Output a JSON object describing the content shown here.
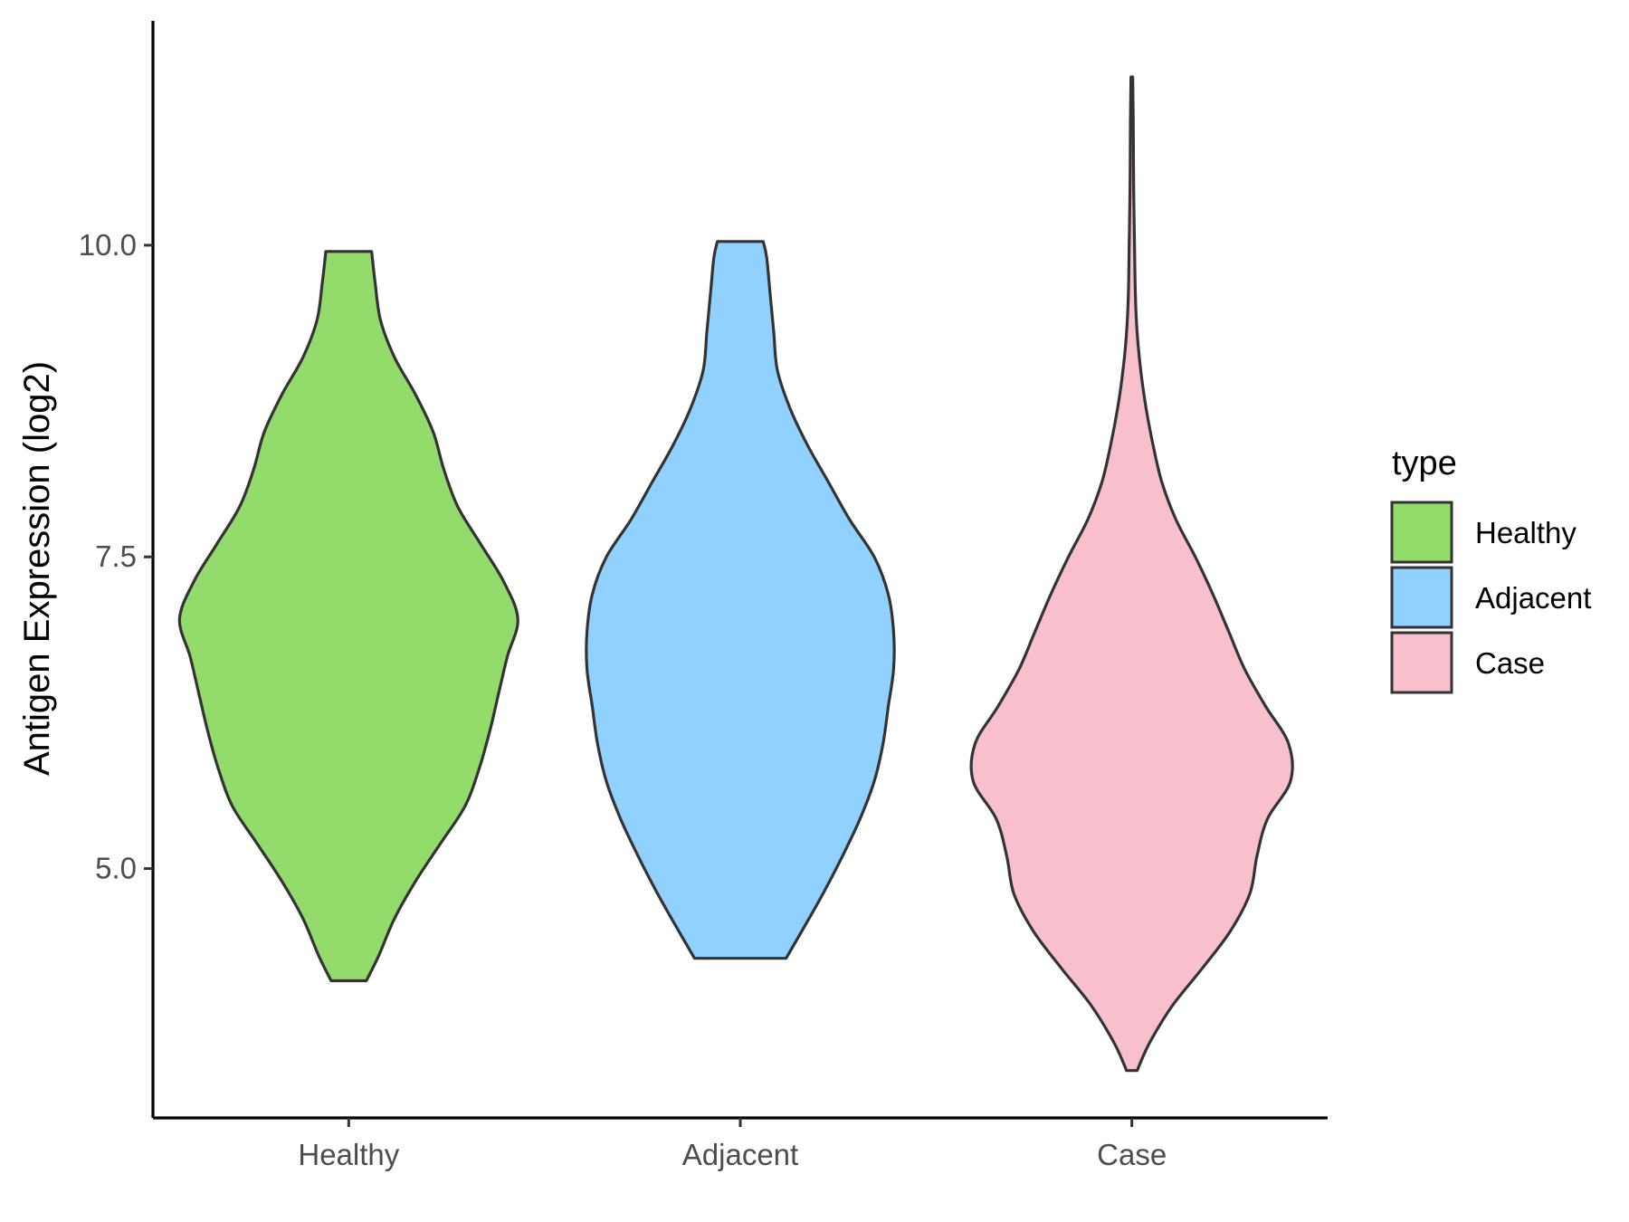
{
  "chart_data": {
    "type": "violin",
    "ylabel": "Antigen Expression (log2)",
    "xlabel": "",
    "categories": [
      "Healthy",
      "Adjacent",
      "Case"
    ],
    "yticks": [
      "5.0",
      "7.5",
      "10.0"
    ],
    "ytick_values": [
      5.0,
      7.5,
      10.0
    ],
    "ylim": [
      3.0,
      11.8
    ],
    "grid": false,
    "legend": {
      "title": "type",
      "position": "right",
      "entries": [
        "Healthy",
        "Adjacent",
        "Case"
      ]
    },
    "series": [
      {
        "name": "Healthy",
        "color": "#93DB6B",
        "min": 4.1,
        "max": 9.95,
        "density_profile": [
          [
            4.1,
            0.1
          ],
          [
            4.3,
            0.17
          ],
          [
            4.6,
            0.26
          ],
          [
            4.9,
            0.38
          ],
          [
            5.2,
            0.52
          ],
          [
            5.5,
            0.66
          ],
          [
            5.8,
            0.74
          ],
          [
            6.1,
            0.8
          ],
          [
            6.4,
            0.85
          ],
          [
            6.7,
            0.9
          ],
          [
            7.0,
            0.96
          ],
          [
            7.3,
            0.88
          ],
          [
            7.6,
            0.75
          ],
          [
            7.9,
            0.62
          ],
          [
            8.2,
            0.54
          ],
          [
            8.5,
            0.48
          ],
          [
            8.8,
            0.38
          ],
          [
            9.1,
            0.26
          ],
          [
            9.4,
            0.18
          ],
          [
            9.7,
            0.15
          ],
          [
            9.95,
            0.13
          ]
        ]
      },
      {
        "name": "Adjacent",
        "color": "#91D1FF",
        "min": 4.28,
        "max": 10.03,
        "density_profile": [
          [
            4.28,
            0.26
          ],
          [
            4.5,
            0.35
          ],
          [
            4.8,
            0.47
          ],
          [
            5.1,
            0.58
          ],
          [
            5.4,
            0.68
          ],
          [
            5.7,
            0.76
          ],
          [
            6.0,
            0.81
          ],
          [
            6.3,
            0.84
          ],
          [
            6.6,
            0.87
          ],
          [
            6.9,
            0.87
          ],
          [
            7.2,
            0.84
          ],
          [
            7.5,
            0.76
          ],
          [
            7.8,
            0.62
          ],
          [
            8.1,
            0.5
          ],
          [
            8.4,
            0.38
          ],
          [
            8.7,
            0.28
          ],
          [
            9.0,
            0.21
          ],
          [
            9.3,
            0.19
          ],
          [
            9.6,
            0.17
          ],
          [
            9.9,
            0.15
          ],
          [
            10.03,
            0.13
          ]
        ]
      },
      {
        "name": "Case",
        "color": "#F7C0CC",
        "min": 3.38,
        "max": 11.35,
        "density_profile": [
          [
            3.38,
            0.03
          ],
          [
            3.6,
            0.1
          ],
          [
            3.9,
            0.23
          ],
          [
            4.2,
            0.4
          ],
          [
            4.5,
            0.56
          ],
          [
            4.8,
            0.67
          ],
          [
            5.1,
            0.71
          ],
          [
            5.4,
            0.77
          ],
          [
            5.7,
            0.9
          ],
          [
            6.0,
            0.89
          ],
          [
            6.3,
            0.76
          ],
          [
            6.6,
            0.64
          ],
          [
            6.9,
            0.55
          ],
          [
            7.2,
            0.46
          ],
          [
            7.5,
            0.36
          ],
          [
            7.8,
            0.25
          ],
          [
            8.1,
            0.17
          ],
          [
            8.4,
            0.12
          ],
          [
            8.7,
            0.08
          ],
          [
            9.0,
            0.05
          ],
          [
            9.3,
            0.03
          ],
          [
            9.6,
            0.02
          ],
          [
            10.0,
            0.015
          ],
          [
            10.5,
            0.01
          ],
          [
            11.0,
            0.008
          ],
          [
            11.35,
            0.005
          ]
        ]
      }
    ]
  }
}
